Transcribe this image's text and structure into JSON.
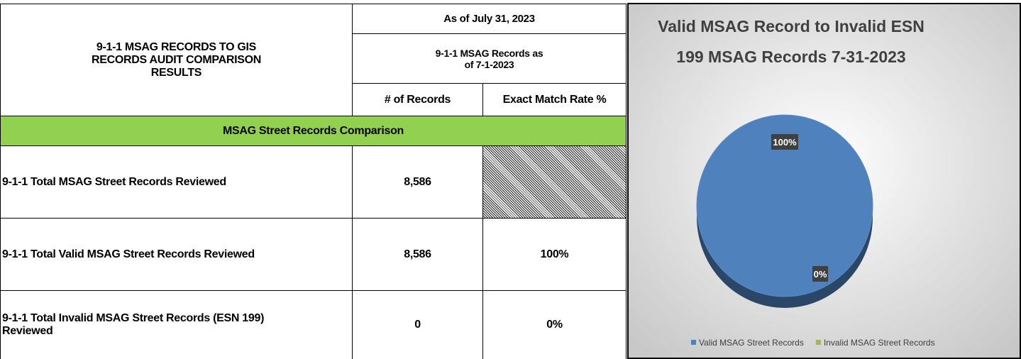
{
  "table": {
    "title": "9-1-1 MSAG RECORDS TO GIS RECORDS AUDIT COMPARISON RESULTS",
    "date_header": "As of July 31, 2023",
    "subheader": "9-1-1 MSAG Records as of 7-1-2023",
    "columns": [
      "# of Records",
      "Exact Match Rate %"
    ],
    "section": "MSAG Street Records Comparison",
    "rows": [
      [
        "9-1-1 Total MSAG Street Records Reviewed",
        "8,586"
      ],
      [
        "9-1-1 Total Valid MSAG Street Records Reviewed",
        "8,586",
        "100%"
      ],
      [
        "9-1-1 Total Invalid MSAG Street Records (ESN 199) Reviewed",
        "0",
        "0%"
      ]
    ]
  },
  "chart_data": {
    "type": "pie",
    "title": "Valid MSAG Record to Invalid ESN",
    "subtitle": "199 MSAG Records 7-31-2023",
    "categories": [
      "Valid MSAG Street Records",
      "Invalid MSAG Street Records"
    ],
    "values": [
      100,
      0
    ],
    "value_labels": [
      "100%",
      "0%"
    ],
    "colors": [
      "#4f81bd",
      "#9bbb59"
    ]
  }
}
